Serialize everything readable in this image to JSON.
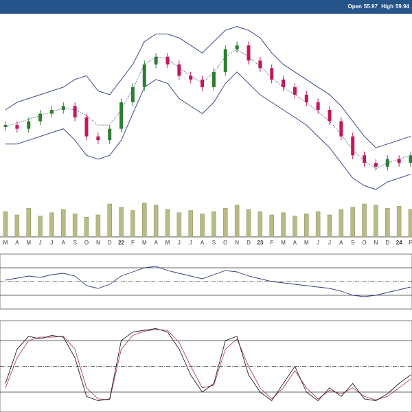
{
  "header": {
    "open_label": "Open",
    "open_value": "55.97",
    "high_label": "High",
    "high_value": "59.94"
  },
  "colors": {
    "header_bg": "#24548a",
    "up_candle": "#2e7d32",
    "down_candle": "#c2185b",
    "band_line": "#3b4a8c",
    "volume_bar": "#b8bb84",
    "rsi_line": "#2e3c78",
    "rsi_overbought_fill": "#8a7a2a",
    "rsi_oversold_fill": "#8a2a5a",
    "stoch_k": "#1a1a2a",
    "stoch_d": "#b04060"
  },
  "chart_data": [
    {
      "type": "candlestick",
      "panel": "price",
      "overlays": [
        "bollinger_upper",
        "bollinger_middle",
        "bollinger_lower"
      ],
      "x": [
        "M",
        "A",
        "M",
        "J",
        "J",
        "A",
        "S",
        "O",
        "N",
        "D",
        "22",
        "F",
        "M",
        "A",
        "M",
        "J",
        "J",
        "A",
        "S",
        "O",
        "N",
        "D",
        "23",
        "F",
        "M",
        "A",
        "M",
        "J",
        "J",
        "A",
        "S",
        "O",
        "N",
        "D",
        "24",
        "F"
      ],
      "close": [
        72,
        70,
        74,
        78,
        80,
        82,
        76,
        66,
        64,
        70,
        84,
        92,
        104,
        108,
        104,
        98,
        96,
        92,
        100,
        112,
        114,
        106,
        102,
        96,
        92,
        88,
        84,
        80,
        74,
        66,
        56,
        52,
        50,
        54,
        52,
        55.97
      ],
      "bollinger_upper": [
        80,
        84,
        86,
        88,
        90,
        92,
        96,
        98,
        90,
        88,
        96,
        104,
        116,
        120,
        120,
        118,
        114,
        110,
        116,
        122,
        124,
        122,
        118,
        110,
        104,
        100,
        96,
        92,
        88,
        82,
        74,
        66,
        60,
        62,
        64,
        66
      ],
      "bollinger_lower": [
        62,
        62,
        64,
        66,
        68,
        70,
        64,
        56,
        54,
        56,
        64,
        78,
        92,
        96,
        94,
        86,
        82,
        78,
        84,
        94,
        100,
        94,
        88,
        84,
        80,
        76,
        72,
        66,
        60,
        52,
        44,
        40,
        38,
        42,
        44,
        46
      ]
    },
    {
      "type": "bar",
      "panel": "volume",
      "values": [
        46,
        40,
        52,
        38,
        44,
        50,
        42,
        36,
        40,
        60,
        54,
        48,
        62,
        58,
        50,
        44,
        48,
        42,
        46,
        52,
        58,
        50,
        46,
        40,
        44,
        38,
        42,
        46,
        40,
        50,
        54,
        60,
        58,
        52,
        56,
        50
      ]
    },
    {
      "type": "line",
      "panel": "rsi",
      "levels": [
        70,
        50,
        30
      ],
      "values": [
        52,
        55,
        58,
        56,
        60,
        62,
        58,
        44,
        40,
        46,
        58,
        64,
        70,
        72,
        66,
        62,
        58,
        54,
        60,
        66,
        64,
        58,
        54,
        50,
        48,
        46,
        44,
        42,
        40,
        36,
        30,
        28,
        30,
        34,
        38,
        42
      ]
    },
    {
      "type": "line",
      "panel": "stochastic",
      "levels": [
        80,
        50,
        20
      ],
      "series": [
        {
          "values": [
            30,
            70,
            85,
            82,
            86,
            84,
            60,
            15,
            10,
            12,
            80,
            90,
            92,
            94,
            90,
            70,
            40,
            20,
            30,
            80,
            85,
            40,
            20,
            10,
            30,
            50,
            20,
            10,
            25,
            15,
            30,
            12,
            10,
            18,
            30,
            40
          ]
        },
        {
          "values": [
            25,
            60,
            80,
            84,
            84,
            85,
            70,
            25,
            12,
            11,
            70,
            86,
            91,
            93,
            92,
            78,
            50,
            25,
            28,
            70,
            82,
            50,
            25,
            12,
            25,
            45,
            25,
            12,
            22,
            18,
            25,
            15,
            11,
            15,
            25,
            35
          ]
        }
      ]
    }
  ]
}
